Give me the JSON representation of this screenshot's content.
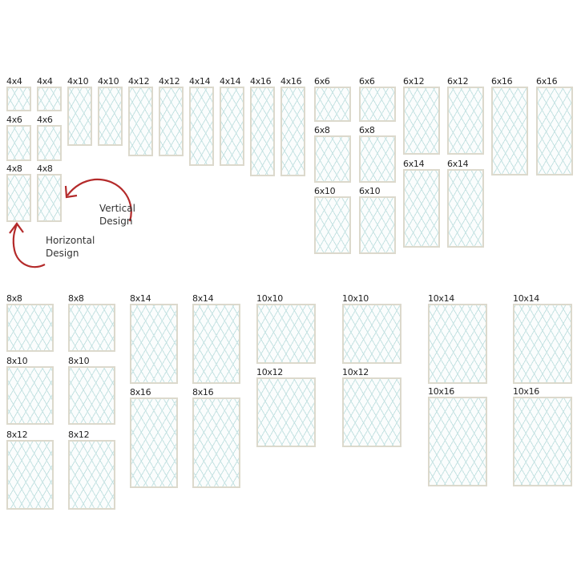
{
  "tiles": [
    {
      "label": "4x4"
    },
    {
      "label": "4x4"
    },
    {
      "label": "4x6"
    },
    {
      "label": "4x6"
    },
    {
      "label": "4x8"
    },
    {
      "label": "4x8"
    },
    {
      "label": "4x10"
    },
    {
      "label": "4x10"
    },
    {
      "label": "4x12"
    },
    {
      "label": "4x12"
    },
    {
      "label": "4x14"
    },
    {
      "label": "4x14"
    },
    {
      "label": "4x16"
    },
    {
      "label": "4x16"
    },
    {
      "label": "6x6"
    },
    {
      "label": "6x6"
    },
    {
      "label": "6x8"
    },
    {
      "label": "6x8"
    },
    {
      "label": "6x10"
    },
    {
      "label": "6x10"
    },
    {
      "label": "6x12"
    },
    {
      "label": "6x12"
    },
    {
      "label": "6x14"
    },
    {
      "label": "6x14"
    },
    {
      "label": "6x16"
    },
    {
      "label": "6x16"
    },
    {
      "label": "8x8"
    },
    {
      "label": "8x8"
    },
    {
      "label": "8x10"
    },
    {
      "label": "8x10"
    },
    {
      "label": "8x12"
    },
    {
      "label": "8x12"
    },
    {
      "label": "8x14"
    },
    {
      "label": "8x14"
    },
    {
      "label": "8x16"
    },
    {
      "label": "8x16"
    },
    {
      "label": "10x10"
    },
    {
      "label": "10x10"
    },
    {
      "label": "10x12"
    },
    {
      "label": "10x12"
    },
    {
      "label": "10x14"
    },
    {
      "label": "10x14"
    },
    {
      "label": "10x16"
    },
    {
      "label": "10x16"
    }
  ],
  "annotations": {
    "vertical_line1": "Vertical",
    "vertical_line2": "Design",
    "horizontal_line1": "Horizontal",
    "horizontal_line2": "Design"
  },
  "colors": {
    "arrow": "#b42a2a",
    "tile_border": "#dcd9cc",
    "pattern": "#c4e2e2"
  }
}
